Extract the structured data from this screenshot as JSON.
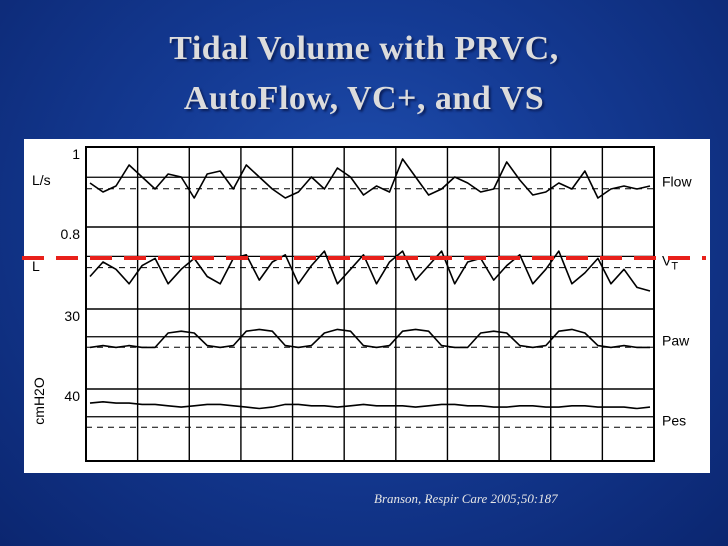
{
  "slide": {
    "title_line1": "Tidal Volume with PRVC,",
    "title_line2": "AutoFlow, VC+, and VS",
    "citation": "Branson, Respir Care 2005;50:187"
  },
  "colors": {
    "background": "#143a93",
    "title_text": "#dcdcdc",
    "trace": "#000000",
    "reference_dash": "#e8201a"
  },
  "chart_data": {
    "type": "line",
    "title": "",
    "x_grid_count": 11,
    "panels": [
      {
        "name": "Flow",
        "label": "Flow",
        "ytick_top": "1",
        "ylabel": "L/s",
        "y_range": [
          -1,
          1
        ],
        "baseline": 0,
        "values": [
          0,
          -0.3,
          -0.1,
          0.6,
          0.2,
          -0.2,
          0.3,
          0.2,
          -0.5,
          0.3,
          0.4,
          -0.2,
          0.6,
          0.2,
          -0.2,
          -0.5,
          -0.3,
          0.2,
          -0.2,
          0.5,
          0.2,
          -0.4,
          -0.1,
          -0.3,
          0.8,
          0.2,
          -0.4,
          -0.2,
          0.2,
          0.0,
          -0.3,
          -0.2,
          0.7,
          0.1,
          -0.4,
          -0.3,
          0.0,
          -0.2,
          0.4,
          -0.5,
          -0.2,
          -0.1,
          -0.2,
          -0.1
        ]
      },
      {
        "name": "VT",
        "label": "V",
        "label_sub": "T",
        "ytick_top": "0.8",
        "ylabel": "L",
        "y_range": [
          0,
          0.8
        ],
        "baseline": 0,
        "values": [
          0.2,
          0.4,
          0.3,
          0.1,
          0.35,
          0.45,
          0.1,
          0.3,
          0.45,
          0.2,
          0.1,
          0.45,
          0.5,
          0.15,
          0.4,
          0.5,
          0.1,
          0.35,
          0.55,
          0.1,
          0.3,
          0.5,
          0.1,
          0.4,
          0.55,
          0.15,
          0.35,
          0.55,
          0.1,
          0.4,
          0.45,
          0.15,
          0.35,
          0.5,
          0.1,
          0.3,
          0.55,
          0.1,
          0.25,
          0.45,
          0.1,
          0.3,
          0.05,
          0.0
        ]
      },
      {
        "name": "Paw",
        "label": "Paw",
        "ytick_top": "30",
        "ylabel": "cmH2O",
        "y_range": [
          0,
          30
        ],
        "baseline": 0,
        "values": [
          12,
          13,
          12,
          13,
          12,
          12,
          20,
          21,
          20,
          13,
          12,
          13,
          21,
          22,
          21,
          13,
          12,
          13,
          20,
          22,
          21,
          13,
          12,
          13,
          21,
          22,
          21,
          13,
          12,
          12,
          20,
          21,
          20,
          13,
          12,
          13,
          21,
          22,
          20,
          13,
          12,
          13,
          12,
          12
        ]
      },
      {
        "name": "Pes",
        "label": "Pes",
        "ytick_top": "40",
        "ylabel": "cmH2O",
        "y_range": [
          0,
          40
        ],
        "baseline": 0,
        "values": [
          34,
          35,
          34,
          34,
          33,
          33,
          32,
          31,
          32,
          33,
          33,
          32,
          31,
          30,
          31,
          33,
          33,
          32,
          32,
          31,
          32,
          33,
          32,
          32,
          32,
          31,
          32,
          33,
          33,
          32,
          32,
          31,
          31,
          32,
          32,
          31,
          31,
          32,
          32,
          31,
          31,
          31,
          30,
          31
        ]
      }
    ],
    "reference_line": {
      "style": "dashed",
      "color": "#e8201a",
      "value_panel": "VT",
      "value": 0.55
    },
    "ylabel_shared": "cmH2O",
    "grid": true
  }
}
